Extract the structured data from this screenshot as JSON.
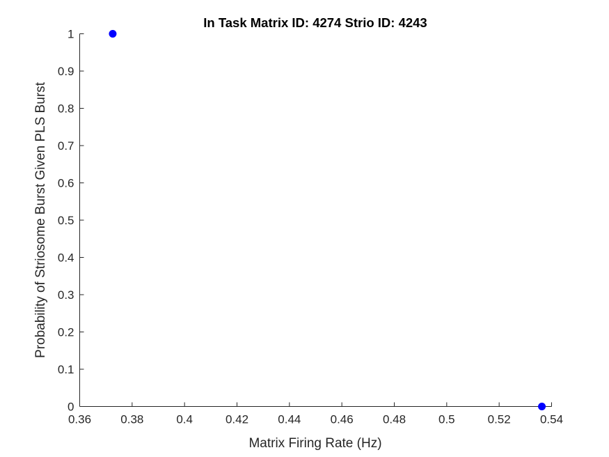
{
  "chart_data": {
    "type": "scatter",
    "title": "In Task Matrix ID: 4274 Strio ID: 4243",
    "xlabel": "Matrix Firing Rate (Hz)",
    "ylabel": "Probability of Striosome Burst Given PLS Burst",
    "xlim": [
      0.36,
      0.54
    ],
    "ylim": [
      0,
      1
    ],
    "xticks": [
      0.36,
      0.38,
      0.4,
      0.42,
      0.44,
      0.46,
      0.48,
      0.5,
      0.52,
      0.54
    ],
    "xtick_labels": [
      "0.36",
      "0.38",
      "0.4",
      "0.42",
      "0.44",
      "0.46",
      "0.48",
      "0.5",
      "0.52",
      "0.54"
    ],
    "yticks": [
      0,
      0.1,
      0.2,
      0.3,
      0.4,
      0.5,
      0.6,
      0.7,
      0.8,
      0.9,
      1
    ],
    "ytick_labels": [
      "0",
      "0.1",
      "0.2",
      "0.3",
      "0.4",
      "0.5",
      "0.6",
      "0.7",
      "0.8",
      "0.9",
      "1"
    ],
    "grid": false,
    "series": [
      {
        "color": "#0000ff",
        "marker": "filled-circle",
        "points": [
          {
            "x": 0.3726,
            "y": 1
          },
          {
            "x": 0.5363,
            "y": 0
          }
        ]
      }
    ]
  }
}
